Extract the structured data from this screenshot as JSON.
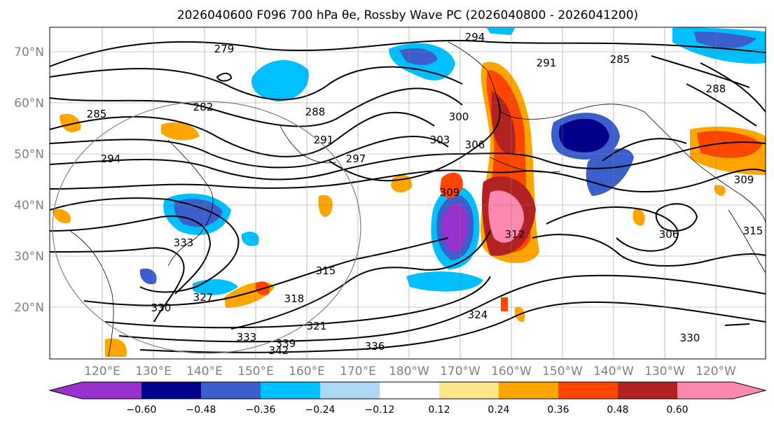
{
  "title": "2026040600 F096 700 hPa θe, Rossby Wave PC (2026040800 - 2026041200)",
  "map": {
    "lat_ticks": [
      "70°N",
      "60°N",
      "50°N",
      "40°N",
      "30°N",
      "20°N"
    ],
    "lon_ticks": [
      "120°E",
      "130°E",
      "140°E",
      "150°E",
      "160°E",
      "170°E",
      "180°W",
      "170°W",
      "160°W",
      "150°W",
      "140°W",
      "130°W",
      "120°W"
    ],
    "contour_labels": [
      "279",
      "285",
      "282",
      "288",
      "291",
      "294",
      "297",
      "300",
      "303",
      "306",
      "309",
      "312",
      "315",
      "318",
      "321",
      "324",
      "327",
      "330",
      "333",
      "336",
      "339",
      "342",
      "294",
      "291",
      "285",
      "288",
      "306",
      "309",
      "315",
      "330",
      "333"
    ]
  },
  "colorbar": {
    "tick_labels": [
      "−0.60",
      "−0.48",
      "−0.36",
      "−0.24",
      "−0.12",
      "0.12",
      "0.24",
      "0.36",
      "0.48",
      "0.60"
    ],
    "colors": [
      "#9932cc",
      "#00008b",
      "#3a5fcd",
      "#00bfff",
      "#add8f5",
      "#ffffff",
      "#fde68a",
      "#ffa500",
      "#ff4500",
      "#b22222",
      "#ff88b0"
    ]
  }
}
